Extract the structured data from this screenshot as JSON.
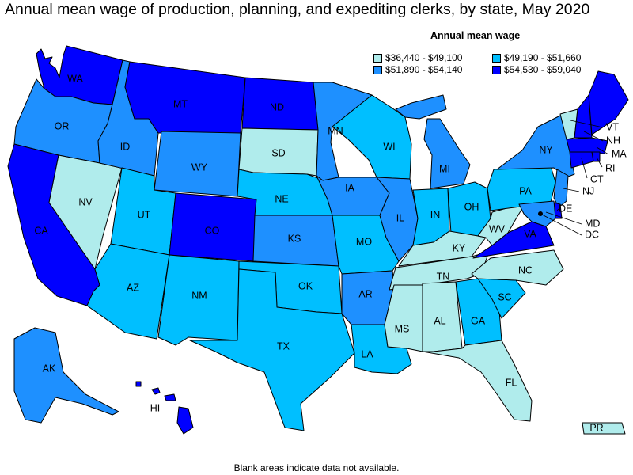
{
  "title": "Annual mean wage of production, planning, and expediting clerks, by state, May 2020",
  "legend": {
    "title": "Annual mean wage",
    "items": [
      {
        "label": "$36,440 - $49,100",
        "color": "#b0ecec"
      },
      {
        "label": "$49,190 - $51,660",
        "color": "#00bfff"
      },
      {
        "label": "$51,890 - $54,140",
        "color": "#1e90ff"
      },
      {
        "label": "$54,530 - $59,040",
        "color": "#0000ff"
      }
    ]
  },
  "footnote": "Blank areas indicate data not available.",
  "states": {
    "WA": {
      "label": "WA",
      "bin": 3
    },
    "OR": {
      "label": "OR",
      "bin": 2
    },
    "CA": {
      "label": "CA",
      "bin": 3
    },
    "ID": {
      "label": "ID",
      "bin": 2
    },
    "NV": {
      "label": "NV",
      "bin": 0
    },
    "MT": {
      "label": "MT",
      "bin": 3
    },
    "WY": {
      "label": "WY",
      "bin": 2
    },
    "UT": {
      "label": "UT",
      "bin": 1
    },
    "AZ": {
      "label": "AZ",
      "bin": 1
    },
    "CO": {
      "label": "CO",
      "bin": 3
    },
    "NM": {
      "label": "NM",
      "bin": 1
    },
    "ND": {
      "label": "ND",
      "bin": 3
    },
    "SD": {
      "label": "SD",
      "bin": 0
    },
    "NE": {
      "label": "NE",
      "bin": 1
    },
    "KS": {
      "label": "KS",
      "bin": 2
    },
    "OK": {
      "label": "OK",
      "bin": 1
    },
    "TX": {
      "label": "TX",
      "bin": 1
    },
    "MN": {
      "label": "MN",
      "bin": 2
    },
    "IA": {
      "label": "IA",
      "bin": 2
    },
    "MO": {
      "label": "MO",
      "bin": 1
    },
    "AR": {
      "label": "AR",
      "bin": 2
    },
    "LA": {
      "label": "LA",
      "bin": 1
    },
    "WI": {
      "label": "WI",
      "bin": 1
    },
    "IL": {
      "label": "IL",
      "bin": 2
    },
    "MI": {
      "label": "MI",
      "bin": 2
    },
    "IN": {
      "label": "IN",
      "bin": 1
    },
    "OH": {
      "label": "OH",
      "bin": 1
    },
    "KY": {
      "label": "KY",
      "bin": 0
    },
    "TN": {
      "label": "TN",
      "bin": 0
    },
    "MS": {
      "label": "MS",
      "bin": 0
    },
    "AL": {
      "label": "AL",
      "bin": 0
    },
    "GA": {
      "label": "GA",
      "bin": 1
    },
    "FL": {
      "label": "FL",
      "bin": 0
    },
    "SC": {
      "label": "SC",
      "bin": 1
    },
    "NC": {
      "label": "NC",
      "bin": 0
    },
    "VA": {
      "label": "VA",
      "bin": 3
    },
    "WV": {
      "label": "WV",
      "bin": 0
    },
    "PA": {
      "label": "PA",
      "bin": 1
    },
    "NY": {
      "label": "NY",
      "bin": 2
    },
    "VT": {
      "label": "VT",
      "bin": 0
    },
    "NH": {
      "label": "NH",
      "bin": 3
    },
    "ME": {
      "label": "ME",
      "bin": 3
    },
    "MA": {
      "label": "MA",
      "bin": 3
    },
    "RI": {
      "label": "RI",
      "bin": 3
    },
    "CT": {
      "label": "CT",
      "bin": 3
    },
    "NJ": {
      "label": "NJ",
      "bin": 2
    },
    "DE": {
      "label": "DE",
      "bin": 3
    },
    "MD": {
      "label": "MD",
      "bin": 2
    },
    "DC": {
      "label": "DC",
      "bin": 1
    },
    "AK": {
      "label": "AK",
      "bin": 2
    },
    "HI": {
      "label": "HI",
      "bin": 3
    },
    "PR": {
      "label": "PR",
      "bin": 0
    }
  }
}
